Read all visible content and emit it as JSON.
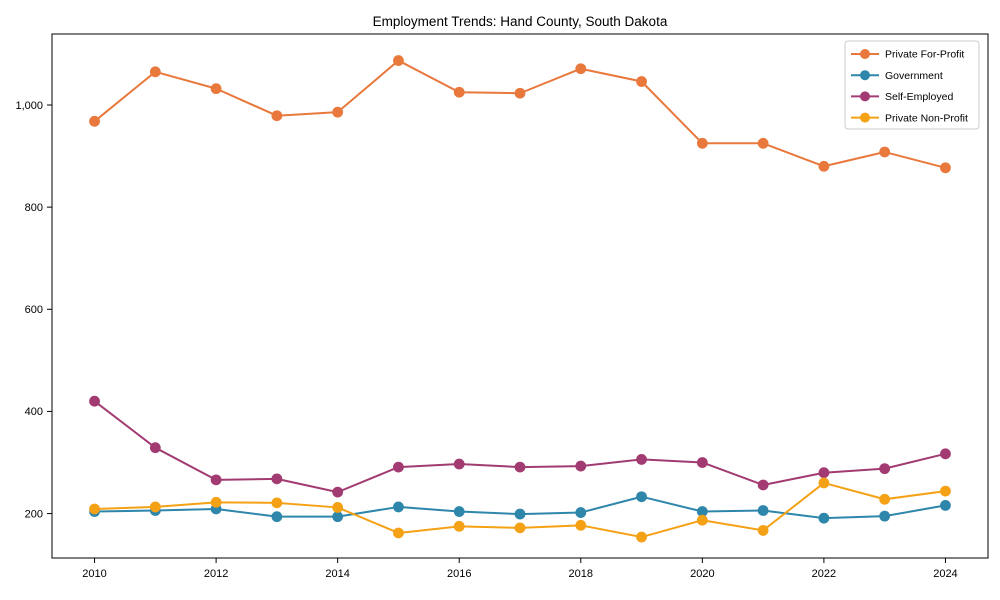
{
  "figure": {
    "background": "#ffffff",
    "spine_color": "#000000",
    "tick_color": "#000000",
    "legend_border_color": "#cccccc",
    "legend_background": "#ffffff"
  },
  "chart_data": {
    "type": "line",
    "title": "Employment Trends: Hand County, South Dakota",
    "xlabel": "",
    "ylabel": "",
    "x": [
      2010,
      2011,
      2012,
      2013,
      2014,
      2015,
      2016,
      2017,
      2018,
      2019,
      2020,
      2021,
      2022,
      2023,
      2024
    ],
    "series": [
      {
        "name": "Private For-Profit",
        "color": "#E8783C",
        "marker": "circle",
        "values": [
          968,
          1065,
          1032,
          979,
          986,
          1087,
          1025,
          1023,
          1071,
          1046,
          925,
          925,
          880,
          908,
          877
        ]
      },
      {
        "name": "Government",
        "color": "#2E86AB",
        "marker": "circle",
        "values": [
          204,
          206,
          209,
          194,
          194,
          213,
          204,
          199,
          202,
          233,
          204,
          206,
          191,
          195,
          216
        ]
      },
      {
        "name": "Self-Employed",
        "color": "#A23B72",
        "marker": "circle",
        "values": [
          420,
          329,
          266,
          268,
          242,
          291,
          297,
          291,
          293,
          306,
          300,
          256,
          280,
          288,
          317
        ]
      },
      {
        "name": "Private Non-Profit",
        "color": "#F5A115",
        "marker": "circle",
        "values": [
          209,
          213,
          222,
          221,
          212,
          162,
          175,
          172,
          177,
          154,
          187,
          167,
          260,
          228,
          244
        ]
      }
    ],
    "xticks": [
      2010,
      2012,
      2014,
      2016,
      2018,
      2020,
      2022,
      2024
    ],
    "xtick_labels": [
      "2010",
      "2012",
      "2014",
      "2016",
      "2018",
      "2020",
      "2022",
      "2024"
    ],
    "yticks": [
      200,
      400,
      600,
      800,
      1000
    ],
    "ytick_labels": [
      "200",
      "400",
      "600",
      "800",
      "1,000"
    ],
    "xlim": [
      2009.3,
      2024.7
    ],
    "ylim": [
      113,
      1139
    ],
    "grid": false,
    "legend": {
      "position": "upper-right",
      "entries": [
        "Private For-Profit",
        "Government",
        "Self-Employed",
        "Private Non-Profit"
      ]
    }
  }
}
